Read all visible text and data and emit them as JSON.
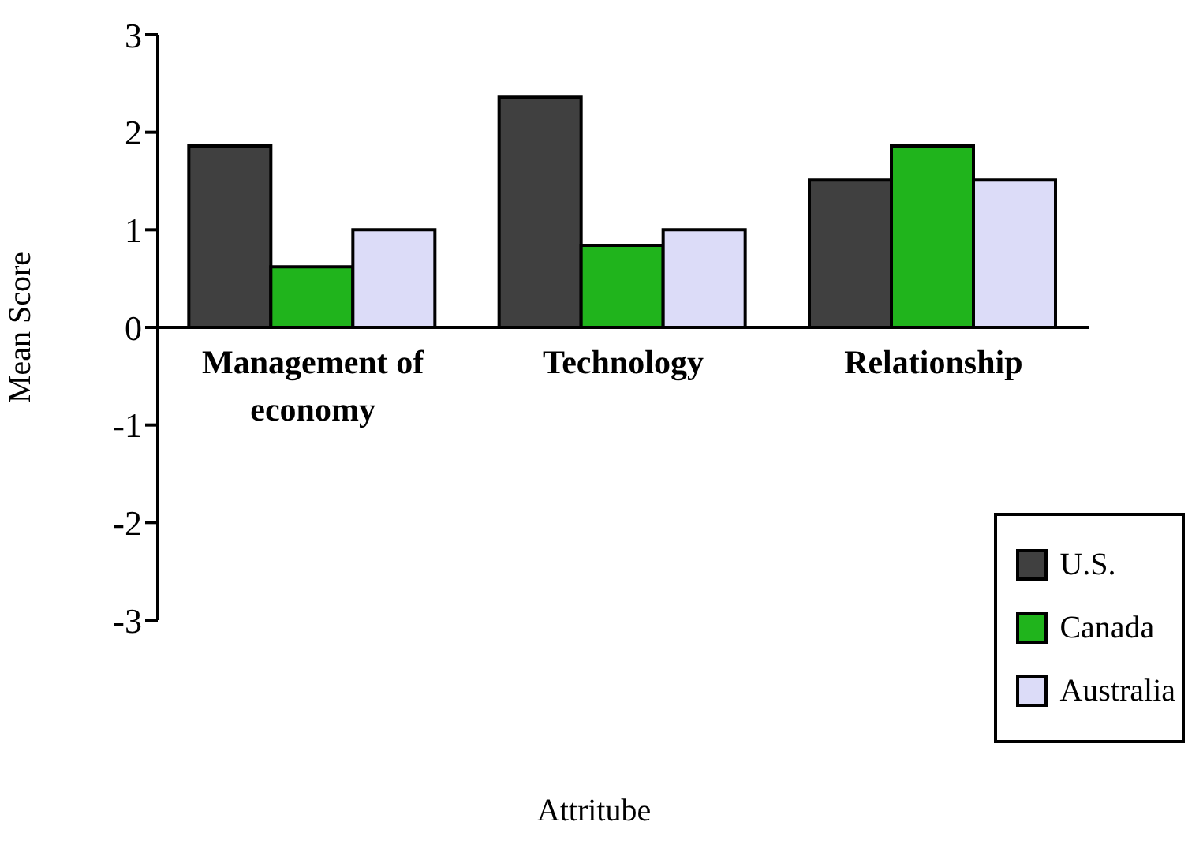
{
  "chart_data": {
    "type": "bar",
    "xlabel": "Attritube",
    "ylabel": "Mean Score",
    "categories": [
      "Management of economy",
      "Technology",
      "Relationship"
    ],
    "series": [
      {
        "name": "U.S.",
        "color": "#404040",
        "values": [
          1.86,
          2.36,
          1.51
        ]
      },
      {
        "name": "Canada",
        "color": "#20b41c",
        "values": [
          0.62,
          0.84,
          1.86
        ]
      },
      {
        "name": "Australia",
        "color": "#dcdcf8",
        "values": [
          1.0,
          1.0,
          1.51
        ]
      }
    ],
    "ylim": [
      -3,
      3
    ],
    "yticks": [
      -3,
      -2,
      -1,
      0,
      1,
      2,
      3
    ],
    "grid": false,
    "legend": "bottom right"
  }
}
